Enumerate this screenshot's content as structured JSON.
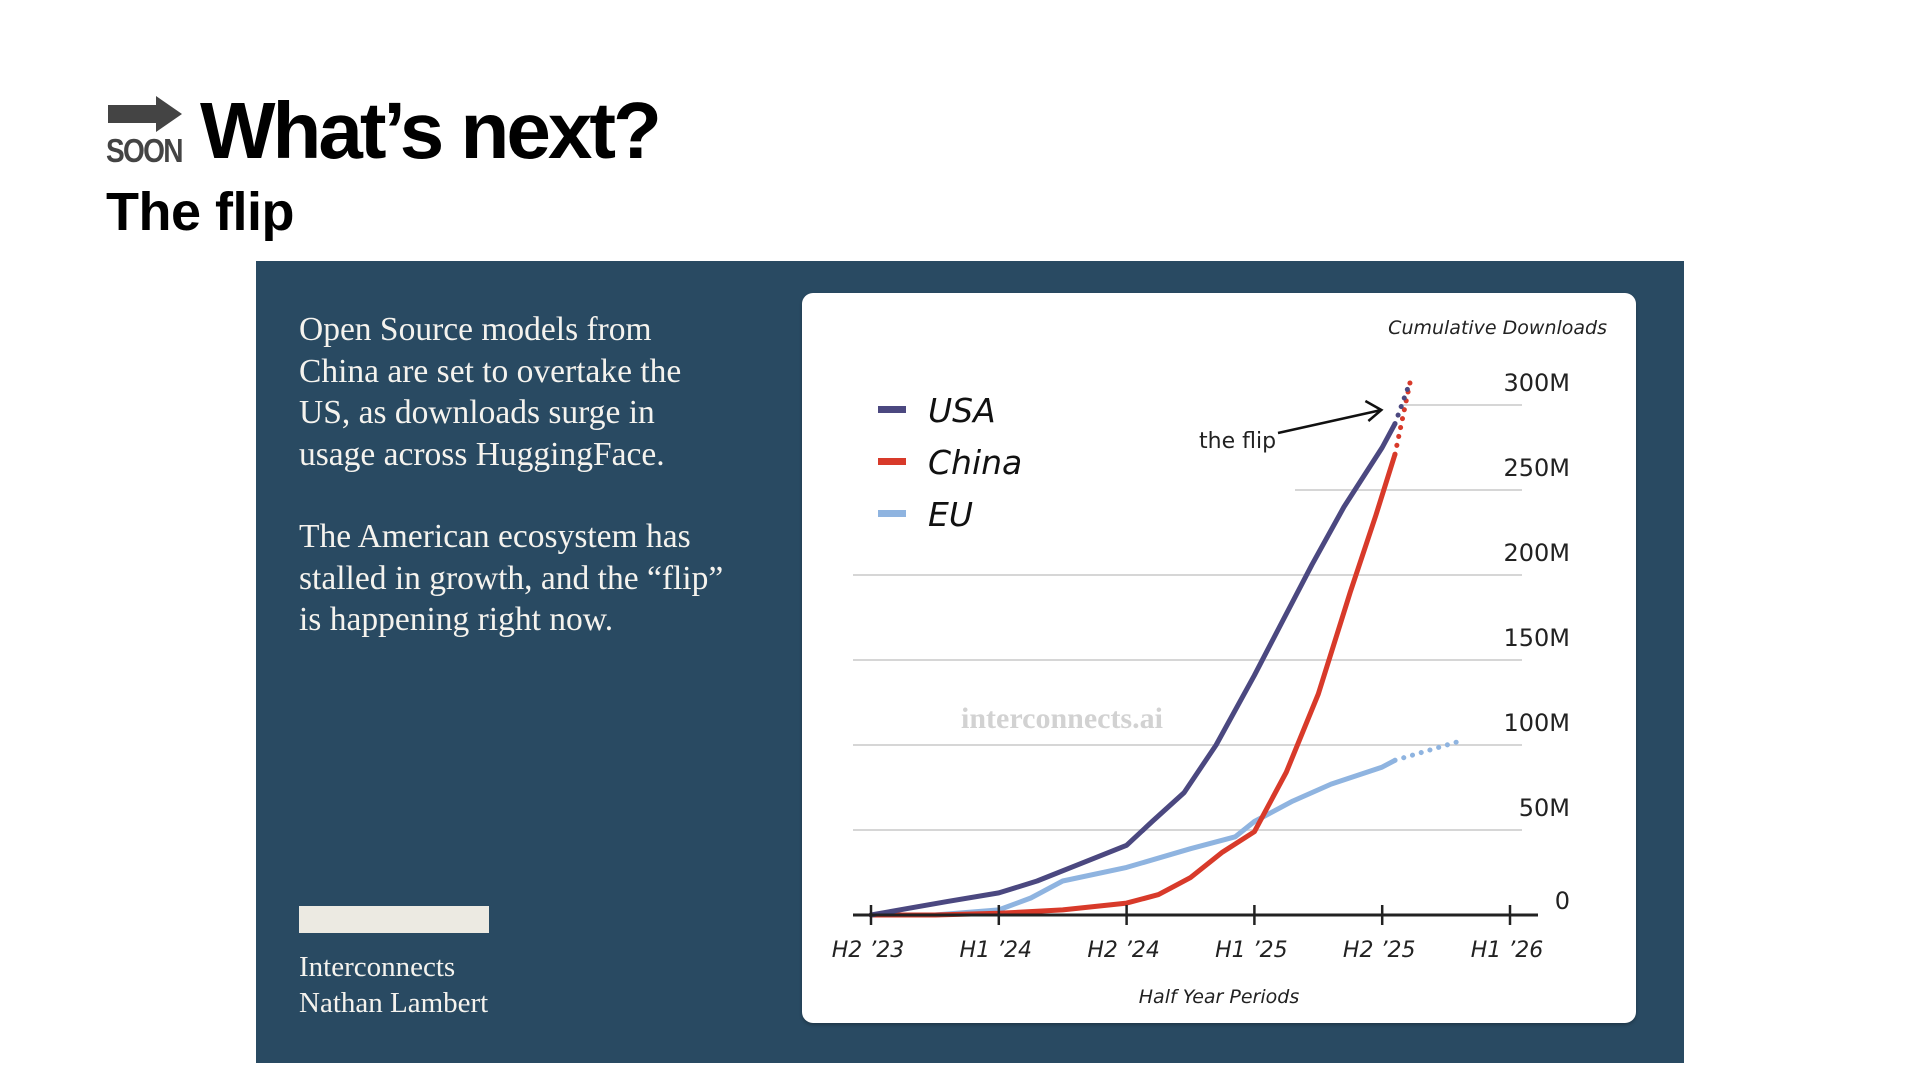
{
  "header": {
    "logo_text": "SOON",
    "logo_icon": "right-arrow-icon",
    "title": "What’s next?",
    "subtitle": "The flip"
  },
  "panel": {
    "paragraphs": [
      "Open Source models from China are set to overtake the US, as downloads surge in usage across HuggingFace.",
      "The American ecosystem has stalled in growth, and the “flip” is happening right now."
    ],
    "brand_lines": [
      "Interconnects",
      "Nathan Lambert"
    ],
    "colors": {
      "background": "#294a62",
      "text": "#f5f3ee"
    }
  },
  "chart_data": {
    "type": "line",
    "title": "Cumulative Downloads",
    "xlabel": "Half Year Periods",
    "ylabel": "Cumulative Downloads",
    "x_categories": [
      "H2 ’23",
      "H1 ’24",
      "H2 ’24",
      "H1 ’25",
      "H2 ’25",
      "H1 ’26"
    ],
    "x_range": [
      0,
      5
    ],
    "y_ticks": [
      0,
      50,
      100,
      150,
      200,
      250,
      300
    ],
    "y_tick_labels": [
      "0",
      "50M",
      "100M",
      "150M",
      "200M",
      "250M",
      "300M"
    ],
    "ylim": [
      0,
      300
    ],
    "y_unit": "millions of downloads",
    "grid": true,
    "legend_position": "top-left",
    "watermark": "interconnects.ai",
    "annotation": {
      "text": "the flip",
      "target_x": 4.15,
      "target_y": 300
    },
    "series": [
      {
        "name": "USA",
        "color": "#4b4880",
        "x": [
          0,
          0.3,
          0.6,
          1.0,
          1.3,
          1.6,
          2.0,
          2.2,
          2.45,
          2.7,
          3.0,
          3.2,
          3.45,
          3.7,
          4.0,
          4.1
        ],
        "values": [
          0,
          4,
          8,
          13,
          20,
          29,
          41,
          55,
          72,
          100,
          141,
          170,
          206,
          240,
          275,
          289
        ],
        "projection": {
          "x": [
            4.1,
            4.22
          ],
          "values": [
            289,
            314
          ]
        }
      },
      {
        "name": "China",
        "color": "#d83a2a",
        "x": [
          0,
          0.5,
          1.0,
          1.5,
          2.0,
          2.25,
          2.5,
          2.75,
          3.0,
          3.25,
          3.5,
          3.75,
          3.95,
          4.1
        ],
        "values": [
          0,
          0,
          1,
          3,
          7,
          12,
          22,
          37,
          49,
          84,
          130,
          190,
          235,
          271
        ],
        "projection": {
          "x": [
            4.1,
            4.22
          ],
          "values": [
            271,
            314
          ]
        }
      },
      {
        "name": "EU",
        "color": "#8fb4e0",
        "x": [
          0,
          0.5,
          1.0,
          1.25,
          1.5,
          2.0,
          2.5,
          2.85,
          3.0,
          3.3,
          3.6,
          4.0,
          4.1
        ],
        "values": [
          0,
          0,
          3,
          10,
          20,
          28,
          39,
          46,
          55,
          67,
          77,
          87,
          91
        ],
        "projection": {
          "x": [
            4.1,
            4.64
          ],
          "values": [
            91,
            103
          ]
        }
      }
    ]
  }
}
